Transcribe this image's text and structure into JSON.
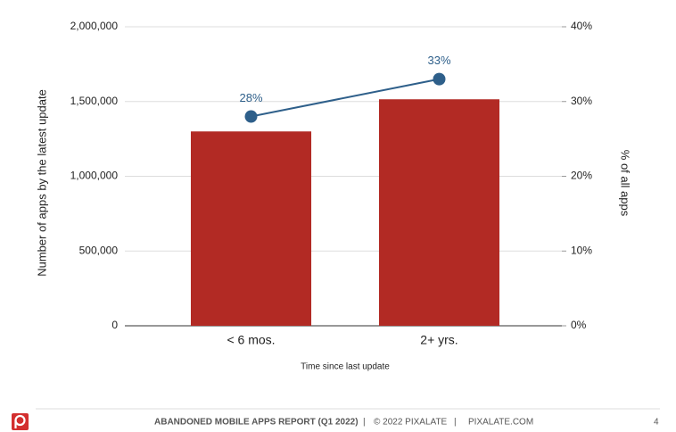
{
  "chart_data": {
    "type": "bar",
    "categories": [
      "< 6 mos.",
      "2+ yrs."
    ],
    "x_label": "Time since last update",
    "y_label": "Number of apps by the latest update",
    "y2_label": "% of all apps",
    "series": [
      {
        "type": "bar",
        "color": "#b22a24",
        "values": [
          1300000,
          1515000
        ]
      },
      {
        "type": "line",
        "axis": "y2",
        "color": "#2e5f8a",
        "values": [
          28,
          33
        ],
        "value_labels": [
          "28%",
          "33%"
        ]
      }
    ],
    "ylim": [
      0,
      2000000
    ],
    "yticks": [
      0,
      {
        "value": 500000,
        "label": "500,000"
      },
      {
        "value": 1000000,
        "label": "1,000,000"
      },
      {
        "value": 1500000,
        "label": "1,500,000"
      },
      {
        "value": 2000000,
        "label": "2,000,000"
      }
    ],
    "y2lim": [
      0,
      40
    ],
    "y2ticks": [
      {
        "value": 0,
        "label": "0%"
      },
      {
        "value": 10,
        "label": "10%"
      },
      {
        "value": 20,
        "label": "20%"
      },
      {
        "value": 30,
        "label": "30%"
      },
      {
        "value": 40,
        "label": "40%"
      }
    ],
    "grid": true
  },
  "footer": {
    "report": "ABANDONED MOBILE APPS REPORT (Q1 2022)",
    "separator": "|",
    "copyright": "© 2022 PIXALATE",
    "site": "PIXALATE.COM",
    "page": "4"
  }
}
